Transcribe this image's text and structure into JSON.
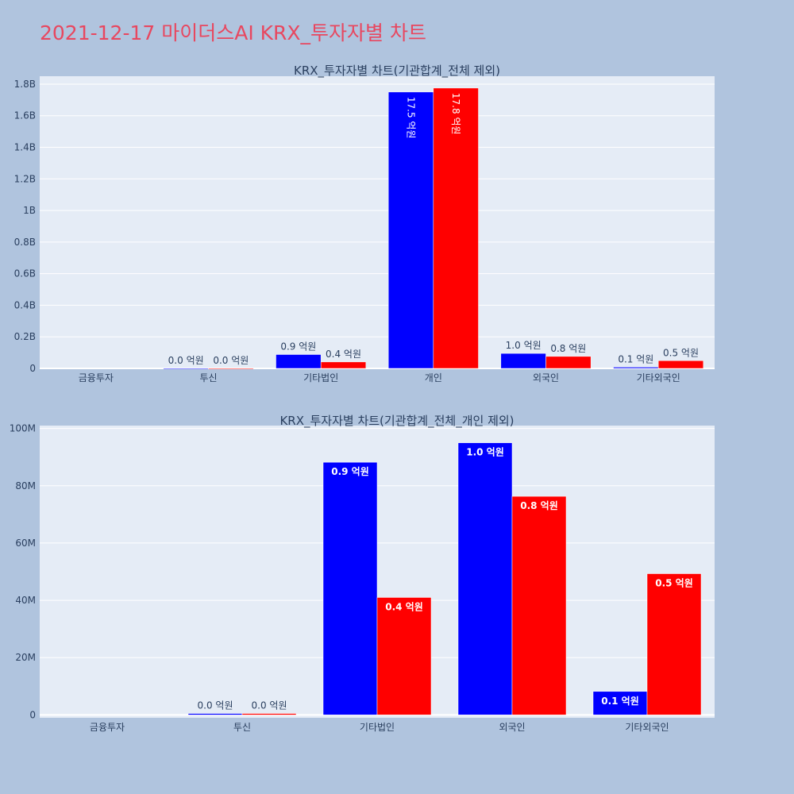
{
  "page_title": "2021-12-17 마이더스AI KRX_투자자별 차트",
  "colors": {
    "buy": "#0000ff",
    "sell": "#ff0000",
    "plot_bg": "#e5ecf6",
    "page_bg": "#b0c4de",
    "title": "#e8475f"
  },
  "chart_data": [
    {
      "type": "bar",
      "title": "KRX_투자자별 차트(기관합계_전체 제외)",
      "categories": [
        "금융투자",
        "투신",
        "기타법인",
        "개인",
        "외국인",
        "기타외국인"
      ],
      "series": [
        {
          "color": "#0000ff",
          "values": [
            0,
            1000000,
            88000000,
            1750000000,
            95000000,
            8000000
          ],
          "labels": [
            "",
            "0.0 억원",
            "0.9 억원",
            "17.5 억원",
            "1.0 억원",
            "0.1 억원"
          ]
        },
        {
          "color": "#ff0000",
          "values": [
            0,
            1000000,
            41000000,
            1775000000,
            76000000,
            49000000
          ],
          "labels": [
            "",
            "0.0 억원",
            "0.4 억원",
            "17.8 억원",
            "0.8 억원",
            "0.5 억원"
          ]
        }
      ],
      "ylim": [
        0,
        1850000000
      ],
      "yticks": [
        0,
        200000000,
        400000000,
        600000000,
        800000000,
        1000000000,
        1200000000,
        1400000000,
        1600000000,
        1800000000
      ],
      "ytick_labels": [
        "0",
        "0.2B",
        "0.4B",
        "0.6B",
        "0.8B",
        "1B",
        "1.2B",
        "1.4B",
        "1.6B",
        "1.8B"
      ],
      "grid": true
    },
    {
      "type": "bar",
      "title": "KRX_투자자별 차트(기관합계_전체_개인 제외)",
      "categories": [
        "금융투자",
        "투신",
        "기타법인",
        "외국인",
        "기타외국인"
      ],
      "series": [
        {
          "color": "#0000ff",
          "values": [
            0,
            500000,
            88200000,
            95000000,
            8200000
          ],
          "labels": [
            "",
            "0.0 억원",
            "0.9 억원",
            "1.0 억원",
            "0.1 억원"
          ]
        },
        {
          "color": "#ff0000",
          "values": [
            0,
            500000,
            41000000,
            76300000,
            49300000
          ],
          "labels": [
            "",
            "0.0 억원",
            "0.4 억원",
            "0.8 억원",
            "0.5 억원"
          ]
        }
      ],
      "ylim": [
        -1000000,
        101000000
      ],
      "yticks": [
        0,
        20000000,
        40000000,
        60000000,
        80000000,
        100000000
      ],
      "ytick_labels": [
        "0",
        "20M",
        "40M",
        "60M",
        "80M",
        "100M"
      ],
      "grid": true
    }
  ]
}
